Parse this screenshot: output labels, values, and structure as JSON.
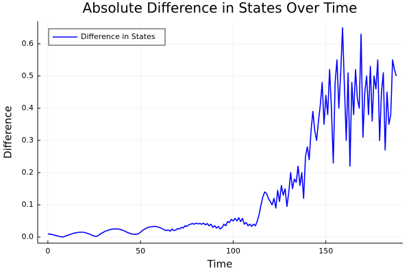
{
  "chart_data": {
    "type": "line",
    "title": "Absolute Difference in States Over Time",
    "x_label": "Time",
    "y_label": "Difference",
    "x": [
      0,
      1,
      2,
      3,
      4,
      5,
      6,
      7,
      8,
      9,
      10,
      11,
      12,
      13,
      14,
      15,
      16,
      17,
      18,
      19,
      20,
      21,
      22,
      23,
      24,
      25,
      26,
      27,
      28,
      29,
      30,
      31,
      32,
      33,
      34,
      35,
      36,
      37,
      38,
      39,
      40,
      41,
      42,
      43,
      44,
      45,
      46,
      47,
      48,
      49,
      50,
      51,
      52,
      53,
      54,
      55,
      56,
      57,
      58,
      59,
      60,
      61,
      62,
      63,
      64,
      65,
      66,
      67,
      68,
      69,
      70,
      71,
      72,
      73,
      74,
      75,
      76,
      77,
      78,
      79,
      80,
      81,
      82,
      83,
      84,
      85,
      86,
      87,
      88,
      89,
      90,
      91,
      92,
      93,
      94,
      95,
      96,
      97,
      98,
      99,
      100,
      101,
      102,
      103,
      104,
      105,
      106,
      107,
      108,
      109,
      110,
      111,
      112,
      113,
      114,
      115,
      116,
      117,
      118,
      119,
      120,
      121,
      122,
      123,
      124,
      125,
      126,
      127,
      128,
      129,
      130,
      131,
      132,
      133,
      134,
      135,
      136,
      137,
      138,
      139,
      140,
      141,
      142,
      143,
      144,
      145,
      146,
      147,
      148,
      149,
      150,
      151,
      152,
      153,
      154,
      155,
      156,
      157,
      158,
      159,
      160,
      161,
      162,
      163,
      164,
      165,
      166,
      167,
      168,
      169,
      170,
      171,
      172,
      173,
      174,
      175,
      176,
      177,
      178,
      179,
      180,
      181,
      182,
      183,
      184,
      185,
      186,
      187,
      188
    ],
    "series": [
      {
        "name": "Difference in States",
        "color": "#0000ff",
        "values": [
          0.01,
          0.009,
          0.008,
          0.007,
          0.005,
          0.004,
          0.002,
          0.001,
          0.0,
          0.002,
          0.004,
          0.006,
          0.008,
          0.01,
          0.012,
          0.013,
          0.014,
          0.015,
          0.015,
          0.015,
          0.014,
          0.012,
          0.01,
          0.008,
          0.005,
          0.003,
          0.002,
          0.004,
          0.008,
          0.012,
          0.015,
          0.018,
          0.02,
          0.022,
          0.024,
          0.025,
          0.025,
          0.025,
          0.025,
          0.024,
          0.022,
          0.02,
          0.017,
          0.014,
          0.012,
          0.01,
          0.009,
          0.008,
          0.009,
          0.011,
          0.015,
          0.02,
          0.024,
          0.027,
          0.03,
          0.031,
          0.032,
          0.033,
          0.033,
          0.032,
          0.03,
          0.028,
          0.025,
          0.022,
          0.02,
          0.022,
          0.018,
          0.025,
          0.02,
          0.022,
          0.026,
          0.025,
          0.03,
          0.028,
          0.035,
          0.033,
          0.038,
          0.04,
          0.042,
          0.04,
          0.043,
          0.041,
          0.042,
          0.04,
          0.043,
          0.038,
          0.042,
          0.035,
          0.04,
          0.03,
          0.035,
          0.028,
          0.033,
          0.025,
          0.03,
          0.04,
          0.035,
          0.048,
          0.045,
          0.055,
          0.05,
          0.058,
          0.05,
          0.06,
          0.048,
          0.058,
          0.04,
          0.045,
          0.035,
          0.04,
          0.033,
          0.04,
          0.035,
          0.05,
          0.07,
          0.1,
          0.125,
          0.14,
          0.135,
          0.12,
          0.11,
          0.1,
          0.12,
          0.09,
          0.145,
          0.11,
          0.16,
          0.13,
          0.15,
          0.095,
          0.14,
          0.2,
          0.15,
          0.18,
          0.17,
          0.22,
          0.16,
          0.2,
          0.12,
          0.25,
          0.28,
          0.24,
          0.33,
          0.39,
          0.33,
          0.3,
          0.36,
          0.41,
          0.48,
          0.35,
          0.44,
          0.38,
          0.52,
          0.4,
          0.23,
          0.48,
          0.55,
          0.4,
          0.51,
          0.65,
          0.47,
          0.3,
          0.51,
          0.22,
          0.48,
          0.38,
          0.52,
          0.43,
          0.4,
          0.63,
          0.31,
          0.45,
          0.5,
          0.38,
          0.53,
          0.36,
          0.5,
          0.46,
          0.55,
          0.3,
          0.45,
          0.51,
          0.27,
          0.45,
          0.35,
          0.38,
          0.55,
          0.52,
          0.5
        ]
      }
    ],
    "xlim": [
      -5.5,
      191.5
    ],
    "xticks": [
      0,
      50,
      100,
      150
    ],
    "ylim": [
      -0.019,
      0.67
    ],
    "yticks": [
      {
        "value": 0,
        "label": "0.0"
      },
      0.1,
      0.2,
      0.3,
      0.4,
      0.5,
      0.6
    ],
    "grid": true,
    "legend": "top-left"
  }
}
